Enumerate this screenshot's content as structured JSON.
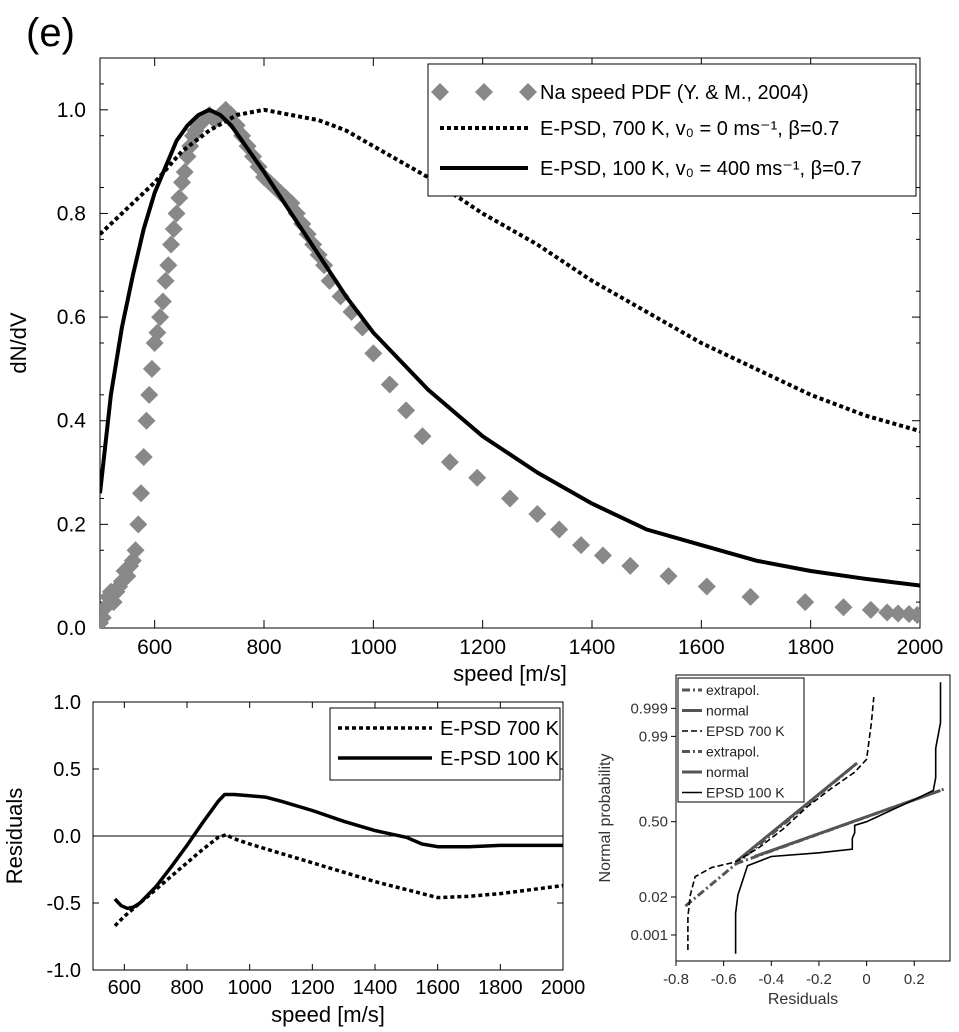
{
  "panel_label": "(e)",
  "chart_data": [
    {
      "type": "line",
      "title": "",
      "xlabel": "speed [m/s]",
      "ylabel": "dN/dV",
      "xlim": [
        500,
        2000
      ],
      "ylim": [
        0,
        1.1
      ],
      "xticks": [
        600,
        800,
        1000,
        1200,
        1400,
        1600,
        1800,
        2000
      ],
      "yticks": [
        0.0,
        0.2,
        0.4,
        0.6,
        0.8,
        1.0
      ],
      "ytick_labels": [
        "0.0",
        "0.2",
        "0.4",
        "0.6",
        "0.8",
        "1.0"
      ],
      "legend_position": "top-right",
      "series": [
        {
          "name": "Na speed PDF (Y. & M., 2004)",
          "style": "diamond-markers",
          "color": "#888888",
          "x": [
            500,
            505,
            510,
            515,
            520,
            525,
            530,
            535,
            540,
            545,
            550,
            555,
            560,
            565,
            570,
            575,
            580,
            585,
            590,
            595,
            600,
            605,
            610,
            615,
            620,
            625,
            630,
            635,
            640,
            645,
            650,
            655,
            660,
            665,
            670,
            675,
            680,
            690,
            700,
            710,
            720,
            730,
            740,
            750,
            760,
            770,
            780,
            790,
            800,
            810,
            820,
            830,
            840,
            850,
            860,
            870,
            880,
            890,
            900,
            910,
            920,
            940,
            960,
            980,
            1000,
            1030,
            1060,
            1090,
            1140,
            1190,
            1250,
            1300,
            1340,
            1380,
            1420,
            1470,
            1540,
            1610,
            1690,
            1790,
            1860,
            1910,
            1940,
            1960,
            1980,
            1995
          ],
          "values": [
            0.01,
            0.02,
            0.04,
            0.06,
            0.07,
            0.05,
            0.07,
            0.08,
            0.09,
            0.11,
            0.1,
            0.12,
            0.13,
            0.15,
            0.2,
            0.26,
            0.33,
            0.4,
            0.45,
            0.5,
            0.55,
            0.57,
            0.6,
            0.63,
            0.67,
            0.7,
            0.74,
            0.77,
            0.8,
            0.83,
            0.86,
            0.88,
            0.91,
            0.93,
            0.95,
            0.96,
            0.97,
            0.98,
            0.99,
            0.98,
            0.99,
            1.0,
            0.99,
            0.97,
            0.95,
            0.93,
            0.91,
            0.89,
            0.87,
            0.86,
            0.85,
            0.84,
            0.83,
            0.82,
            0.8,
            0.78,
            0.76,
            0.74,
            0.72,
            0.7,
            0.67,
            0.64,
            0.61,
            0.58,
            0.53,
            0.47,
            0.42,
            0.37,
            0.32,
            0.29,
            0.25,
            0.22,
            0.19,
            0.16,
            0.14,
            0.12,
            0.1,
            0.08,
            0.06,
            0.05,
            0.04,
            0.035,
            0.03,
            0.028,
            0.027,
            0.025
          ],
          "marker_values_note": "values read from chart"
        },
        {
          "name": "E-PSD, 700 K, v₀ = 0 ms⁻¹, β=0.7",
          "style": "dotted",
          "color": "#000000",
          "x": [
            500,
            550,
            600,
            650,
            700,
            750,
            800,
            850,
            900,
            950,
            1000,
            1100,
            1200,
            1300,
            1400,
            1500,
            1600,
            1700,
            1800,
            1900,
            2000
          ],
          "values": [
            0.76,
            0.81,
            0.86,
            0.92,
            0.96,
            0.99,
            1.0,
            0.99,
            0.98,
            0.96,
            0.93,
            0.87,
            0.8,
            0.74,
            0.67,
            0.61,
            0.55,
            0.5,
            0.45,
            0.41,
            0.38
          ]
        },
        {
          "name": "E-PSD, 100 K, v₀ = 400 ms⁻¹, β=0.7",
          "style": "solid",
          "color": "#000000",
          "x": [
            500,
            520,
            540,
            560,
            580,
            600,
            620,
            640,
            660,
            680,
            700,
            720,
            740,
            760,
            780,
            800,
            850,
            900,
            950,
            1000,
            1100,
            1200,
            1300,
            1400,
            1500,
            1600,
            1700,
            1800,
            1900,
            2000
          ],
          "values": [
            0.26,
            0.45,
            0.58,
            0.68,
            0.77,
            0.84,
            0.89,
            0.94,
            0.97,
            0.99,
            1.0,
            0.99,
            0.97,
            0.94,
            0.91,
            0.88,
            0.8,
            0.72,
            0.64,
            0.57,
            0.46,
            0.37,
            0.3,
            0.24,
            0.19,
            0.16,
            0.13,
            0.11,
            0.095,
            0.082
          ]
        }
      ]
    },
    {
      "type": "line",
      "title": "",
      "xlabel": "speed [m/s]",
      "ylabel": "Residuals",
      "xlim": [
        500,
        2000
      ],
      "ylim": [
        -1.0,
        1.0
      ],
      "xticks": [
        600,
        800,
        1000,
        1200,
        1400,
        1600,
        1800,
        2000
      ],
      "yticks": [
        -1.0,
        -0.5,
        0.0,
        0.5,
        1.0
      ],
      "ytick_labels": [
        "-1.0",
        "-0.5",
        "0.0",
        "0.5",
        "1.0"
      ],
      "legend_position": "top-right",
      "series": [
        {
          "name": "E-PSD 700 K",
          "style": "dotted",
          "color": "#000000",
          "x": [
            570,
            600,
            650,
            700,
            750,
            800,
            850,
            900,
            925,
            950,
            1000,
            1100,
            1200,
            1300,
            1400,
            1500,
            1600,
            1700,
            1800,
            1900,
            2000
          ],
          "values": [
            -0.67,
            -0.6,
            -0.5,
            -0.4,
            -0.3,
            -0.2,
            -0.1,
            -0.01,
            0.01,
            -0.02,
            -0.06,
            -0.13,
            -0.2,
            -0.27,
            -0.34,
            -0.4,
            -0.46,
            -0.45,
            -0.43,
            -0.4,
            -0.37
          ]
        },
        {
          "name": "E-PSD 100 K",
          "style": "solid",
          "color": "#000000",
          "x": [
            570,
            590,
            610,
            630,
            650,
            700,
            750,
            800,
            850,
            900,
            920,
            950,
            1000,
            1050,
            1100,
            1200,
            1300,
            1400,
            1500,
            1550,
            1600,
            1700,
            1800,
            1900,
            2000
          ],
          "values": [
            -0.47,
            -0.52,
            -0.54,
            -0.53,
            -0.5,
            -0.38,
            -0.23,
            -0.07,
            0.1,
            0.26,
            0.31,
            0.31,
            0.3,
            0.29,
            0.26,
            0.19,
            0.11,
            0.04,
            -0.01,
            -0.06,
            -0.08,
            -0.08,
            -0.07,
            -0.07,
            -0.07
          ]
        }
      ]
    },
    {
      "type": "line",
      "title": "",
      "xlabel": "Residuals",
      "ylabel": "Normal probability",
      "xlim": [
        -0.8,
        0.35
      ],
      "xticks": [
        -0.8,
        -0.6,
        -0.4,
        -0.2,
        0,
        0.2
      ],
      "xtick_labels": [
        "-0.8",
        "-0.6",
        "-0.4",
        "-0.2",
        "0",
        "0.2"
      ],
      "yticks": [
        "0.001",
        "0.02",
        "0.50",
        "0.99",
        "0.999"
      ],
      "legend_position": "top-left",
      "series": [
        {
          "name": "extrapol.",
          "style": "dash-dot",
          "color": "#555555",
          "points_note": "700 K extrapolation",
          "x": [
            -0.76,
            -0.04
          ],
          "z": [
            -2.3,
            1.6
          ]
        },
        {
          "name": "normal",
          "style": "solid",
          "color": "#555555",
          "x": [
            -0.55,
            -0.04
          ],
          "z": [
            -1.1,
            1.6
          ]
        },
        {
          "name": "EPSD 700 K",
          "style": "dashed",
          "color": "#000000",
          "x": [
            -0.75,
            -0.75,
            -0.74,
            -0.72,
            -0.65,
            -0.55,
            -0.45,
            -0.35,
            -0.25,
            -0.15,
            -0.05,
            0.0,
            0.01,
            0.02,
            0.03
          ],
          "z": [
            -3.5,
            -2.6,
            -2.0,
            -1.5,
            -1.25,
            -1.1,
            -0.7,
            -0.2,
            0.4,
            0.9,
            1.35,
            1.7,
            2.2,
            2.7,
            3.4
          ]
        },
        {
          "name": "extrapol.",
          "style": "dash-dot",
          "color": "#555555",
          "points_note": "100 K extrapolation",
          "x": [
            -0.55,
            0.33
          ],
          "z": [
            -1.15,
            0.9
          ]
        },
        {
          "name": "normal",
          "style": "solid",
          "color": "#555555",
          "x": [
            -0.47,
            0.31
          ],
          "z": [
            -0.95,
            0.85
          ]
        },
        {
          "name": "EPSD 100 K",
          "style": "solid",
          "color": "#000000",
          "x": [
            -0.55,
            -0.55,
            -0.54,
            -0.5,
            -0.4,
            -0.2,
            -0.06,
            -0.06,
            -0.05,
            -0.05,
            0.0,
            0.1,
            0.2,
            0.28,
            0.29,
            0.29,
            0.31,
            0.31
          ],
          "z": [
            -3.6,
            -2.5,
            -2.0,
            -1.2,
            -0.95,
            -0.85,
            -0.75,
            -0.45,
            -0.3,
            -0.1,
            0.0,
            0.3,
            0.6,
            0.85,
            1.2,
            2.0,
            2.7,
            3.8
          ]
        }
      ]
    }
  ]
}
